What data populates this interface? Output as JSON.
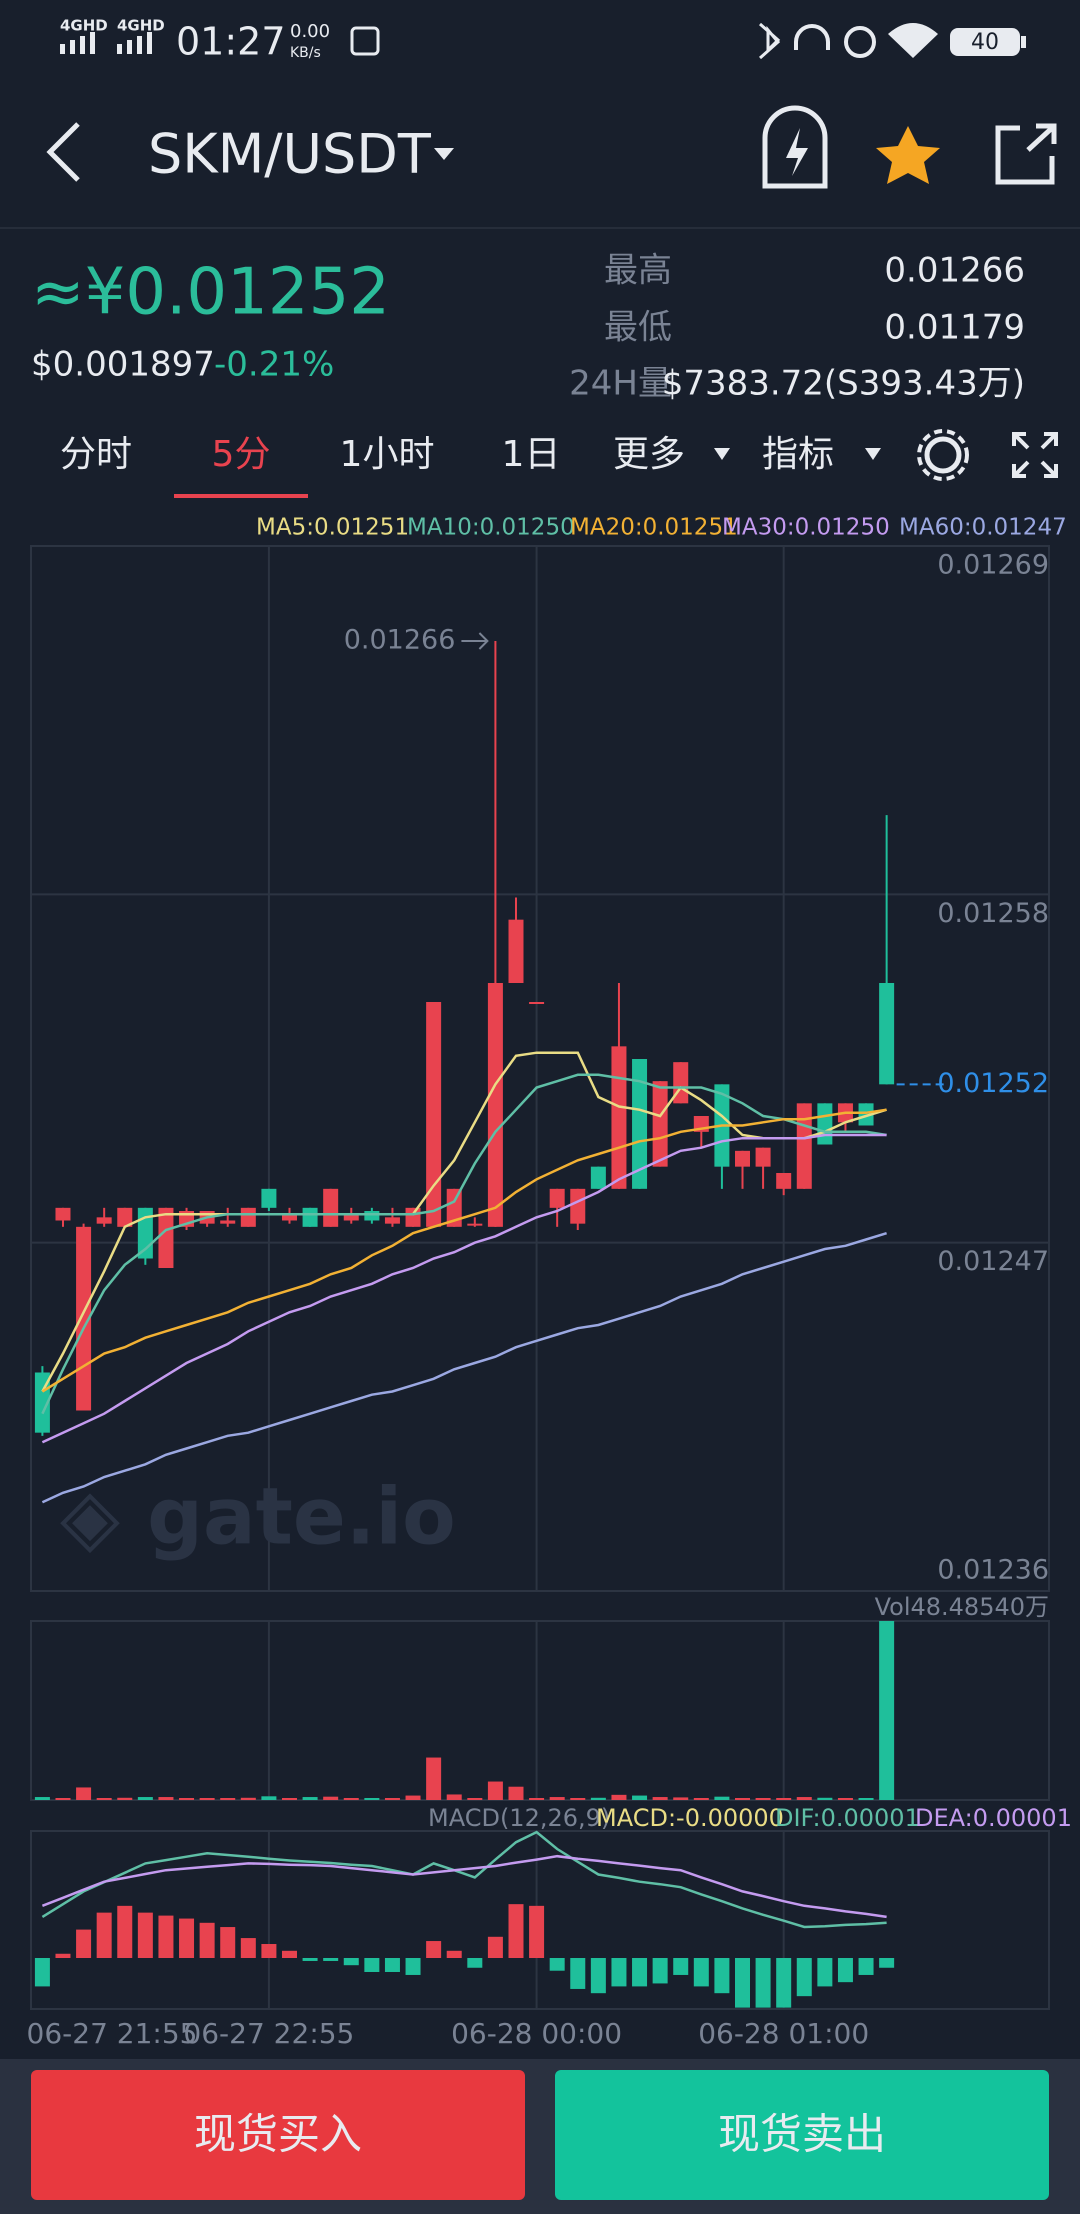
{
  "status_bar": {
    "net1": "4GHD",
    "net2": "4GHD",
    "time": "01:27",
    "speed": "0.00",
    "speed_unit": "KB/s",
    "battery": "40"
  },
  "header": {
    "pair": "SKM/USDT"
  },
  "ticker": {
    "price_cny": "≈¥0.01252",
    "price_usd": "$0.001897",
    "change": "-0.21%",
    "stats": [
      {
        "label": "最高",
        "value": "0.01266"
      },
      {
        "label": "最低",
        "value": "0.01179"
      },
      {
        "label": "24H量",
        "value": "$7383.72(S393.43万)"
      }
    ]
  },
  "tabs": [
    "分时",
    "5分",
    "1小时",
    "1日",
    "更多",
    "指标"
  ],
  "active_tab": 1,
  "chart_data": {
    "type": "candlestick",
    "categories": [
      null,
      null,
      null,
      "06-27 21:55",
      null,
      null,
      null,
      null,
      null,
      null,
      null,
      "06-27 22:55",
      null,
      null,
      null,
      null,
      null,
      null,
      null,
      null,
      null,
      null,
      null,
      null,
      "06-28 00:00",
      null,
      null,
      null,
      null,
      null,
      null,
      null,
      null,
      null,
      null,
      null,
      "06-28 01:00",
      null,
      null,
      null,
      null,
      null
    ],
    "open": [
      0.012429,
      0.012477,
      0.012417,
      0.012476,
      0.012475,
      0.012481,
      0.012462,
      0.012475,
      0.012476,
      0.012476,
      0.012475,
      0.012487,
      0.012477,
      0.012481,
      0.012475,
      0.012477,
      0.01248,
      0.012476,
      0.012475,
      0.012475,
      0.012475,
      0.012476,
      0.012475,
      0.012552,
      0.012546,
      0.012481,
      0.012476,
      0.012494,
      0.012487,
      0.012528,
      0.012494,
      0.012514,
      0.012505,
      0.01252,
      0.012494,
      0.012494,
      0.012487,
      0.012487,
      0.012514,
      0.012508,
      0.012514,
      0.012552
    ],
    "high": [
      0.012431,
      0.012481,
      0.012476,
      0.012481,
      0.012481,
      0.012481,
      0.012481,
      0.012481,
      0.01248,
      0.012481,
      0.012481,
      0.012487,
      0.012481,
      0.012481,
      0.012487,
      0.012481,
      0.012481,
      0.012481,
      0.012481,
      0.012546,
      0.012487,
      0.012478,
      0.01266,
      0.012579,
      0.012546,
      0.012487,
      0.012487,
      0.012494,
      0.012552,
      0.012528,
      0.012521,
      0.012527,
      0.01251,
      0.01252,
      0.012499,
      0.0125,
      0.012492,
      0.012514,
      0.012514,
      0.012514,
      0.012514,
      0.012605
    ],
    "low": [
      0.012409,
      0.012475,
      0.012417,
      0.012475,
      0.012475,
      0.012463,
      0.012462,
      0.012474,
      0.012475,
      0.012475,
      0.012475,
      0.01248,
      0.012476,
      0.012475,
      0.012475,
      0.012476,
      0.012476,
      0.012475,
      0.012475,
      0.012475,
      0.012475,
      0.012475,
      0.012475,
      0.012552,
      0.012546,
      0.012475,
      0.012474,
      0.012487,
      0.012487,
      0.012487,
      0.012494,
      0.012514,
      0.0125,
      0.012487,
      0.012487,
      0.012487,
      0.012485,
      0.012487,
      0.012501,
      0.012505,
      0.012507,
      0.01252
    ],
    "close": [
      0.01241,
      0.012481,
      0.012475,
      0.012478,
      0.012481,
      0.012465,
      0.012481,
      0.01248,
      0.01248,
      0.012477,
      0.012481,
      0.012481,
      0.012479,
      0.012475,
      0.012487,
      0.012479,
      0.012477,
      0.012478,
      0.012481,
      0.012546,
      0.012487,
      0.012476,
      0.012552,
      0.012572,
      0.012546,
      0.012487,
      0.012487,
      0.012487,
      0.012532,
      0.012487,
      0.012521,
      0.012527,
      0.01251,
      0.012494,
      0.012499,
      0.0125,
      0.012492,
      0.012514,
      0.012501,
      0.012514,
      0.012507,
      0.01252
    ],
    "up_color": "#e8434f",
    "down_color": "#1fbf9b",
    "ylim": [
      0.01236,
      0.01269
    ],
    "yticks": [
      0.01236,
      0.01247,
      0.01258,
      0.01269
    ],
    "grid": true,
    "high_label": "0.01266",
    "last_price_label": "0.01252",
    "last_price_color": "#2f8fe8",
    "ma_series": [
      {
        "label": "MA5:0.01251",
        "color": "#e9dc85",
        "values": [
          0.012423,
          0.012435,
          0.012448,
          0.012461,
          0.012475,
          0.012478,
          0.012479,
          0.012479,
          0.012479,
          0.012479,
          0.012479,
          0.012479,
          0.012479,
          0.012479,
          0.012479,
          0.012479,
          0.012479,
          0.012479,
          0.012479,
          0.012488,
          0.012496,
          0.012508,
          0.01252,
          0.012529,
          0.01253,
          0.01253,
          0.01253,
          0.012516,
          0.012513,
          0.012512,
          0.01251,
          0.012519,
          0.012515,
          0.01251,
          0.012504,
          0.012503,
          0.012503,
          0.012503,
          0.012505,
          0.012508,
          0.01251,
          0.012512
        ]
      },
      {
        "label": "MA10:0.01250",
        "color": "#5fbfa6",
        "values": [
          0.012416,
          0.01243,
          0.012443,
          0.012455,
          0.012463,
          0.012468,
          0.012474,
          0.012476,
          0.012478,
          0.012479,
          0.012479,
          0.012479,
          0.012479,
          0.012479,
          0.012479,
          0.012479,
          0.012479,
          0.012479,
          0.012479,
          0.01248,
          0.012483,
          0.012495,
          0.012505,
          0.012512,
          0.012519,
          0.012521,
          0.012523,
          0.012523,
          0.012522,
          0.012521,
          0.012519,
          0.012519,
          0.012519,
          0.012517,
          0.012514,
          0.01251,
          0.012509,
          0.012507,
          0.012505,
          0.012505,
          0.012505,
          0.012504
        ]
      },
      {
        "label": "MA20:0.01251",
        "color": "#f2b134",
        "values": [
          0.012423,
          0.012427,
          0.012431,
          0.012435,
          0.012437,
          0.01244,
          0.012442,
          0.012444,
          0.012446,
          0.012448,
          0.012451,
          0.012453,
          0.012455,
          0.012457,
          0.01246,
          0.012462,
          0.012466,
          0.012469,
          0.012473,
          0.012475,
          0.012477,
          0.012479,
          0.012481,
          0.012486,
          0.01249,
          0.012493,
          0.012496,
          0.012498,
          0.0125,
          0.012502,
          0.012503,
          0.012505,
          0.012506,
          0.012507,
          0.012507,
          0.012508,
          0.012509,
          0.012509,
          0.01251,
          0.012511,
          0.012511,
          0.012512
        ]
      },
      {
        "label": "MA30:0.01250",
        "color": "#c49bf0",
        "values": [
          0.012407,
          0.01241,
          0.012413,
          0.012416,
          0.01242,
          0.012424,
          0.012428,
          0.012432,
          0.012435,
          0.012438,
          0.012442,
          0.012445,
          0.012448,
          0.01245,
          0.012453,
          0.012455,
          0.012457,
          0.01246,
          0.012462,
          0.012465,
          0.012467,
          0.01247,
          0.012472,
          0.012475,
          0.012478,
          0.01248,
          0.012483,
          0.012486,
          0.01249,
          0.012493,
          0.012496,
          0.012499,
          0.0125,
          0.012502,
          0.012503,
          0.012503,
          0.012503,
          0.012503,
          0.012504,
          0.012504,
          0.012504,
          0.012504
        ]
      },
      {
        "label": "MA60:0.01247",
        "color": "#9ba8e2",
        "values": [
          0.012388,
          0.012391,
          0.012393,
          0.012396,
          0.012398,
          0.0124,
          0.012403,
          0.012405,
          0.012407,
          0.012409,
          0.01241,
          0.012412,
          0.012414,
          0.012416,
          0.012418,
          0.01242,
          0.012422,
          0.012423,
          0.012425,
          0.012427,
          0.01243,
          0.012432,
          0.012434,
          0.012437,
          0.012439,
          0.012441,
          0.012443,
          0.012444,
          0.012446,
          0.012448,
          0.01245,
          0.012453,
          0.012455,
          0.012457,
          0.01246,
          0.012462,
          0.012464,
          0.012466,
          0.012468,
          0.012469,
          0.012471,
          0.012473
        ]
      }
    ],
    "volume_label": "Vol48.48540万",
    "volume": [
      0.8,
      0.3,
      3.4,
      0.3,
      0.6,
      0.8,
      0.8,
      0.4,
      0.3,
      0.5,
      0.6,
      1.0,
      0.4,
      0.8,
      0.9,
      0.3,
      0.4,
      0.3,
      1.2,
      11.5,
      1.5,
      0.4,
      5.0,
      3.6,
      0.2,
      0.8,
      0.5,
      0.6,
      1.4,
      1.2,
      0.8,
      0.7,
      0.3,
      0.9,
      0.4,
      0.4,
      0.3,
      0.8,
      0.6,
      0.3,
      0.4,
      48.4854
    ],
    "macd_title": "MACD(12,26,9)",
    "macd": {
      "label": "MACD:-0.00000",
      "color": "#e9dc85",
      "values": [
        -6.7e-06,
        1e-06,
        6.7e-06,
        1.07e-05,
        1.23e-05,
        1.07e-05,
        1e-05,
        9.3e-06,
        8.3e-06,
        7.3e-06,
        4.7e-06,
        3.3e-06,
        1.7e-06,
        -7e-07,
        -7e-07,
        -1.7e-06,
        -3.3e-06,
        -3.3e-06,
        -4e-06,
        4e-06,
        1.7e-06,
        -2.3e-06,
        5e-06,
        1.27e-05,
        1.23e-05,
        -3e-06,
        -7.3e-06,
        -8.3e-06,
        -6.7e-06,
        -6.7e-06,
        -6e-06,
        -4e-06,
        -6.7e-06,
        -8.3e-06,
        -1.17e-05,
        -1.17e-05,
        -1.17e-05,
        -9e-06,
        -6.7e-06,
        -5.7e-06,
        -4e-06,
        -2.3e-06
      ]
    },
    "dif": {
      "label": "DIF:0.00001",
      "color": "#5fbfa6",
      "values": [
        9.7e-06,
        1.27e-05,
        1.57e-05,
        1.79e-05,
        2.01e-05,
        2.23e-05,
        2.31e-05,
        2.39e-05,
        2.47e-05,
        2.43e-05,
        2.39e-05,
        2.34e-05,
        2.3e-05,
        2.27e-05,
        2.24e-05,
        2.2e-05,
        2.17e-05,
        2.07e-05,
        1.97e-05,
        2.23e-05,
        2.07e-05,
        1.9e-05,
        2.32e-05,
        2.73e-05,
        2.97e-05,
        2.57e-05,
        2.27e-05,
        1.97e-05,
        1.89e-05,
        1.8e-05,
        1.74e-05,
        1.67e-05,
        1.5e-05,
        1.34e-05,
        1.17e-05,
        1.02e-05,
        8.8e-06,
        7.3e-06,
        7.5e-06,
        7.8e-06,
        8e-06,
        8.3e-06
      ]
    },
    "dea": {
      "label": "DEA:0.00001",
      "color": "#c49bf0",
      "values": [
        1.23e-05,
        1.42e-05,
        1.61e-05,
        1.8e-05,
        1.89e-05,
        1.98e-05,
        2.07e-05,
        2.11e-05,
        2.15e-05,
        2.19e-05,
        2.23e-05,
        2.22e-05,
        2.2e-05,
        2.19e-05,
        2.17e-05,
        2.12e-05,
        2.07e-05,
        2.02e-05,
        1.97e-05,
        2.02e-05,
        2.07e-05,
        2.12e-05,
        2.17e-05,
        2.25e-05,
        2.32e-05,
        2.4e-05,
        2.34e-05,
        2.29e-05,
        2.23e-05,
        2.18e-05,
        2.12e-05,
        2.07e-05,
        1.9e-05,
        1.74e-05,
        1.57e-05,
        1.46e-05,
        1.34e-05,
        1.23e-05,
        1.17e-05,
        1.1e-05,
        1.04e-05,
        9.7e-06
      ]
    }
  },
  "buttons": {
    "buy": "现货买入",
    "sell": "现货卖出"
  }
}
